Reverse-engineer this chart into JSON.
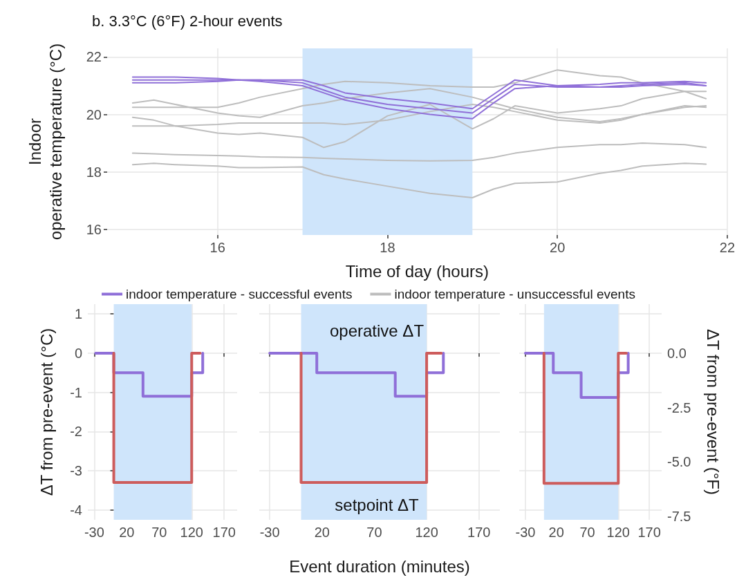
{
  "chart_data": [
    {
      "type": "line",
      "title": "b. 3.3°C (6°F) 2-hour events",
      "xlabel": "Time of day (hours)",
      "ylabel": "Indoor\noperative temperature (°C)",
      "x": [
        15,
        15.25,
        15.5,
        16,
        16.25,
        16.5,
        17,
        17.25,
        17.5,
        18,
        18.5,
        19,
        19.25,
        19.5,
        20,
        20.5,
        20.75,
        21,
        21.5,
        21.75
      ],
      "series": [
        {
          "name": "indoor temperature - successful events",
          "color": "#8f6fd8",
          "values": [
            21.3,
            21.3,
            21.3,
            21.25,
            21.2,
            21.2,
            21.2,
            21.0,
            20.75,
            20.55,
            20.4,
            20.2,
            20.7,
            21.2,
            21.0,
            21.05,
            21.1,
            21.1,
            21.15,
            21.1
          ]
        },
        {
          "color": "#8f6fd8",
          "values": [
            21.2,
            21.2,
            21.2,
            21.2,
            21.2,
            21.2,
            21.1,
            20.85,
            20.6,
            20.35,
            20.2,
            20.05,
            20.55,
            21.05,
            20.95,
            20.95,
            21.0,
            21.05,
            21.1,
            21.0
          ]
        },
        {
          "color": "#8f6fd8",
          "values": [
            21.1,
            21.1,
            21.1,
            21.15,
            21.2,
            21.15,
            21.0,
            20.75,
            20.5,
            20.2,
            20.0,
            19.85,
            20.4,
            20.9,
            21.0,
            20.95,
            20.95,
            21.0,
            21.05,
            21.0
          ]
        },
        {
          "name": "indoor temperature - unsuccessful events",
          "color": "#bdbdbd",
          "values": [
            20.4,
            20.5,
            20.35,
            20.05,
            19.95,
            19.9,
            20.3,
            20.4,
            20.55,
            20.75,
            20.9,
            20.6,
            20.4,
            20.2,
            19.9,
            19.75,
            19.85,
            20.0,
            20.25,
            20.3
          ]
        },
        {
          "color": "#bdbdbd",
          "values": [
            20.25,
            20.25,
            20.25,
            20.25,
            20.4,
            20.6,
            20.9,
            21.05,
            21.15,
            21.1,
            21.0,
            20.95,
            20.95,
            21.1,
            21.55,
            21.35,
            21.3,
            21.1,
            20.8,
            20.55
          ]
        },
        {
          "color": "#bdbdbd",
          "values": [
            19.9,
            19.8,
            19.6,
            19.35,
            19.3,
            19.35,
            19.2,
            18.85,
            19.05,
            19.95,
            20.35,
            19.5,
            19.85,
            20.3,
            20.05,
            20.2,
            20.3,
            20.55,
            20.8,
            20.8
          ]
        },
        {
          "color": "#bdbdbd",
          "values": [
            19.6,
            19.6,
            19.6,
            19.65,
            19.7,
            19.7,
            19.7,
            19.7,
            19.65,
            19.8,
            20.1,
            20.35,
            20.25,
            20.1,
            19.8,
            19.7,
            19.8,
            20.0,
            20.3,
            20.25
          ]
        },
        {
          "color": "#bdbdbd",
          "values": [
            18.65,
            18.63,
            18.6,
            18.57,
            18.55,
            18.52,
            18.5,
            18.47,
            18.45,
            18.4,
            18.38,
            18.4,
            18.5,
            18.65,
            18.85,
            18.95,
            18.95,
            19.0,
            18.95,
            18.85
          ]
        },
        {
          "color": "#bdbdbd",
          "values": [
            18.25,
            18.3,
            18.25,
            18.2,
            18.15,
            18.15,
            18.17,
            17.9,
            17.75,
            17.5,
            17.25,
            17.1,
            17.4,
            17.6,
            17.65,
            17.95,
            18.05,
            18.2,
            18.3,
            18.27
          ]
        }
      ],
      "xlim": [
        14.7,
        22.0
      ],
      "xticks": [
        16,
        18,
        20,
        22
      ],
      "ylim": [
        15.8,
        22.3
      ],
      "yticks": [
        16,
        18,
        20,
        22
      ],
      "bands": [
        {
          "axis": "x",
          "from": 17,
          "to": 19,
          "color": "#cfe5fb"
        }
      ],
      "grid": true,
      "legend": "bottom",
      "marker": "none",
      "line_style": "solid"
    },
    {
      "type": "line",
      "ylabel": "ΔT from pre-event (°C)",
      "series": [
        {
          "color": "#cd5c5c",
          "x": [
            0,
            0,
            120,
            120,
            133
          ],
          "values": [
            0,
            -3.3,
            -3.3,
            0,
            0
          ]
        },
        {
          "color": "#8f6fd8",
          "x": [
            -28,
            0,
            0,
            45,
            45,
            120,
            120,
            137,
            137
          ],
          "values": [
            0,
            0,
            -0.5,
            -0.5,
            -1.1,
            -1.1,
            -0.5,
            -0.5,
            0
          ]
        }
      ],
      "xlim": [
        -40,
        190
      ],
      "xticks": [
        -30,
        20,
        70,
        120,
        170
      ],
      "ylim": [
        -4.25,
        1.25
      ],
      "yticks": [
        -4,
        -3,
        -2,
        -1,
        0,
        1
      ],
      "bands": [
        {
          "axis": "x",
          "from": 0,
          "to": 120,
          "color": "#cfe5fb"
        }
      ],
      "grid": true,
      "marker": "none",
      "line_style": "solid"
    },
    {
      "type": "line",
      "xlabel": "Event duration (minutes)",
      "series": [
        {
          "color": "#cd5c5c",
          "x": [
            0,
            0,
            120,
            120,
            134
          ],
          "values": [
            0,
            -3.3,
            -3.3,
            0,
            0
          ]
        },
        {
          "color": "#8f6fd8",
          "x": [
            -30,
            15,
            15,
            90,
            90,
            120,
            120,
            136,
            136
          ],
          "values": [
            0,
            0,
            -0.5,
            -0.5,
            -1.1,
            -1.1,
            -0.5,
            -0.5,
            0
          ]
        }
      ],
      "annotations": [
        "operative ΔT",
        "setpoint ΔT"
      ],
      "xlim": [
        -40,
        190
      ],
      "xticks": [
        -30,
        20,
        70,
        120,
        170
      ],
      "ylim": [
        -4.25,
        1.25
      ],
      "yticks": [
        -4,
        -3,
        -2,
        -1,
        0,
        1
      ],
      "bands": [
        {
          "axis": "x",
          "from": 0,
          "to": 120,
          "color": "#cfe5fb"
        }
      ],
      "grid": true,
      "tick_labels": "x",
      "marker": "none",
      "line_style": "solid"
    },
    {
      "type": "line",
      "y2label": "ΔT from pre-event (°F)",
      "series": [
        {
          "color": "#cd5c5c",
          "x": [
            0,
            0,
            120,
            120,
            133
          ],
          "values": [
            0,
            -3.32,
            -3.32,
            0,
            0
          ]
        },
        {
          "color": "#8f6fd8",
          "x": [
            -30,
            15,
            15,
            60,
            60,
            120,
            120,
            136,
            136
          ],
          "values": [
            0,
            0,
            -0.5,
            -0.5,
            -1.13,
            -1.13,
            -0.5,
            -0.5,
            0
          ]
        }
      ],
      "xlim": [
        -40,
        190
      ],
      "xticks": [
        -30,
        20,
        70,
        120,
        170
      ],
      "ylim": [
        -4.25,
        1.25
      ],
      "yticks": [
        -4,
        -3,
        -2,
        -1,
        0,
        1
      ],
      "y2lim": [
        -7.65,
        2.25
      ],
      "y2ticks": [
        {
          "value": 0,
          "label": "0.0"
        },
        {
          "value": -2.5,
          "label": "-2.5"
        },
        {
          "value": -5,
          "label": "-5.0"
        },
        {
          "value": -7.5,
          "label": "-7.5"
        }
      ],
      "bands": [
        {
          "axis": "x",
          "from": 0,
          "to": 120,
          "color": "#cfe5fb"
        }
      ],
      "grid": true,
      "tick_labels": "x",
      "marker": "none",
      "line_style": "solid"
    }
  ]
}
